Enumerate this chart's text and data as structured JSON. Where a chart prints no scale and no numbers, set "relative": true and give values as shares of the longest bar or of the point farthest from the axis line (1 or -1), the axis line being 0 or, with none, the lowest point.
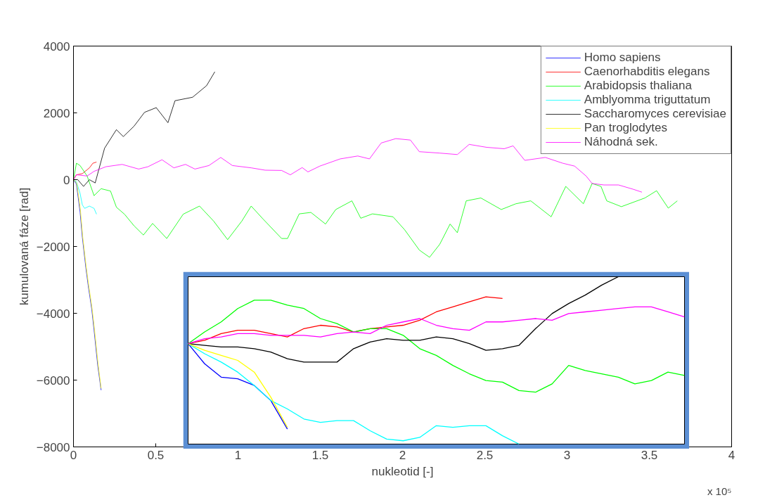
{
  "chart_data": [
    {
      "type": "line",
      "xlabel": "nukleotid [-]",
      "ylabel": "kumulovaná fáze [rad]",
      "xlim": [
        0,
        4
      ],
      "xticks": [
        0,
        0.5,
        1,
        1.5,
        2,
        2.5,
        3,
        3.5,
        4
      ],
      "ylim": [
        -8000,
        4000
      ],
      "yticks": [
        -8000,
        -6000,
        -4000,
        -2000,
        0,
        2000,
        4000
      ],
      "legend": "top right",
      "annotations": [
        "x 10⁵"
      ],
      "series": [
        {
          "name": "Homo sapiens",
          "color": "#0000ff",
          "x": [
            0,
            0.018,
            0.04,
            0.054,
            0.075,
            0.09,
            0.111,
            0.125,
            0.147,
            0.168
          ],
          "values": [
            0,
            -131,
            -963,
            -1726,
            -2627,
            -3182,
            -3875,
            -4499,
            -5539,
            -6300
          ]
        },
        {
          "name": "Caenorhabditis elegans",
          "color": "#ff0000",
          "x": [
            0,
            0.018,
            0.054,
            0.097,
            0.118,
            0.14
          ],
          "values": [
            0,
            146,
            180,
            354,
            493,
            527
          ]
        },
        {
          "name": "Arabidopsis thaliana",
          "color": "#00ff00",
          "x": [
            0,
            0.018,
            0.04,
            0.083,
            0.125,
            0.168,
            0.225,
            0.261,
            0.31,
            0.368,
            0.425,
            0.481,
            0.567,
            0.667,
            0.766,
            0.852,
            0.937,
            1.023,
            1.08,
            1.151,
            1.265,
            1.301,
            1.372,
            1.443,
            1.532,
            1.594,
            1.692,
            1.746,
            1.817,
            1.942,
            2.013,
            2.102,
            2.164,
            2.226,
            2.289,
            2.333,
            2.387,
            2.476,
            2.6,
            2.689,
            2.779,
            2.903,
            2.992,
            3.099,
            3.152,
            3.206,
            3.241,
            3.33,
            3.473,
            3.544,
            3.615,
            3.67
          ],
          "values": [
            0,
            493,
            423,
            110,
            -478,
            -270,
            -340,
            -825,
            -1033,
            -1380,
            -1657,
            -1310,
            -1761,
            -1033,
            -790,
            -1241,
            -1795,
            -1241,
            -790,
            -1172,
            -1761,
            -1761,
            -1024,
            -980,
            -1328,
            -894,
            -634,
            -1154,
            -1024,
            -1111,
            -1501,
            -2107,
            -2324,
            -1934,
            -1328,
            -1588,
            -634,
            -548,
            -894,
            -721,
            -634,
            -1111,
            -201,
            -721,
            -114,
            -201,
            -634,
            -808,
            -548,
            -331,
            -851,
            -634
          ]
        },
        {
          "name": "Amblyomma triguttatum",
          "color": "#00ffff",
          "x": [
            0,
            0.018,
            0.04,
            0.054,
            0.068,
            0.097,
            0.111,
            0.125,
            0.14
          ],
          "values": [
            0,
            -62,
            -409,
            -756,
            -859,
            -790,
            -825,
            -859,
            -1033
          ]
        },
        {
          "name": "Saccharomyces cerevisiae",
          "color": "#000000",
          "x": [
            0,
            0.026,
            0.061,
            0.097,
            0.132,
            0.189,
            0.261,
            0.303,
            0.368,
            0.432,
            0.503,
            0.574,
            0.617,
            0.724,
            0.809,
            0.859
          ],
          "values": [
            0,
            0,
            -202,
            0,
            -98,
            942,
            1498,
            1290,
            1601,
            2017,
            2156,
            1705,
            2364,
            2468,
            2815,
            3230
          ]
        },
        {
          "name": "Pan troglodytes",
          "color": "#ffff00",
          "x": [
            0,
            0.02,
            0.042,
            0.056,
            0.077,
            0.092,
            0.113,
            0.127,
            0.149,
            0.168
          ],
          "values": [
            0,
            -100,
            -900,
            -1700,
            -2600,
            -3150,
            -3850,
            -4450,
            -5500,
            -6250
          ]
        },
        {
          "name": "Náhodná sek.",
          "color": "#ff00ff",
          "x": [
            0,
            0.018,
            0.083,
            0.125,
            0.197,
            0.296,
            0.396,
            0.453,
            0.538,
            0.61,
            0.681,
            0.738,
            0.823,
            0.895,
            0.966,
            1.08,
            1.165,
            1.265,
            1.318,
            1.39,
            1.425,
            1.497,
            1.621,
            1.728,
            1.799,
            1.87,
            1.959,
            2.048,
            2.102,
            2.226,
            2.333,
            2.405,
            2.511,
            2.618,
            2.672,
            2.743,
            2.868,
            2.974,
            3.046,
            3.117,
            3.152,
            3.224,
            3.313,
            3.402,
            3.455
          ],
          "values": [
            0,
            146,
            110,
            250,
            388,
            457,
            318,
            388,
            596,
            354,
            457,
            318,
            423,
            665,
            423,
            354,
            284,
            276,
            146,
            362,
            233,
            406,
            622,
            709,
            622,
            1098,
            1229,
            1186,
            838,
            796,
            752,
            1056,
            969,
            926,
            1012,
            578,
            666,
            492,
            406,
            102,
            -114,
            -158,
            -158,
            -287,
            -374
          ]
        }
      ]
    },
    {
      "type": "line",
      "relative": true,
      "categories": [
        null,
        null,
        null,
        null,
        null,
        null,
        null,
        null,
        null,
        null,
        null,
        null,
        null,
        null,
        null,
        null,
        null,
        null,
        null,
        null,
        null,
        null,
        null,
        null,
        null,
        null,
        null,
        null,
        null,
        null,
        null
      ],
      "series": [
        {
          "color": "#0000ff",
          "values": [
            0.6,
            0.48,
            0.4,
            0.39,
            0.35,
            0.26,
            0.09,
            null,
            null,
            null,
            null,
            null,
            null,
            null,
            null,
            null,
            null,
            null,
            null,
            null,
            null,
            null,
            null,
            null,
            null,
            null,
            null,
            null,
            null,
            null,
            null
          ]
        },
        {
          "color": "#ff0000",
          "values": [
            0.6,
            0.62,
            0.66,
            0.68,
            0.68,
            0.66,
            0.64,
            0.69,
            0.71,
            0.7,
            0.67,
            0.69,
            0.7,
            0.71,
            0.74,
            0.79,
            0.82,
            0.85,
            0.88,
            0.87,
            null,
            null,
            null,
            null,
            null,
            null,
            null,
            null,
            null,
            null,
            null
          ]
        },
        {
          "color": "#00ff00",
          "values": [
            0.6,
            0.67,
            0.73,
            0.81,
            0.86,
            0.86,
            0.83,
            0.81,
            0.75,
            0.72,
            0.67,
            0.69,
            0.69,
            0.65,
            0.57,
            0.53,
            0.47,
            0.42,
            0.38,
            0.37,
            0.32,
            0.31,
            0.36,
            0.47,
            0.44,
            0.42,
            0.4,
            0.36,
            0.38,
            0.43,
            0.41
          ]
        },
        {
          "color": "#00ffff",
          "values": [
            0.6,
            0.54,
            0.49,
            0.43,
            0.35,
            0.26,
            0.21,
            0.15,
            0.13,
            0.14,
            0.14,
            0.08,
            0.03,
            0.02,
            0.04,
            0.11,
            0.1,
            0.11,
            0.11,
            0.05,
            0,
            null,
            null,
            null,
            null,
            null,
            null,
            null,
            null,
            null,
            null
          ]
        },
        {
          "color": "#000000",
          "values": [
            0.6,
            0.59,
            0.58,
            0.58,
            0.57,
            0.55,
            0.51,
            0.49,
            0.49,
            0.49,
            0.57,
            0.61,
            0.63,
            0.62,
            0.62,
            0.64,
            0.63,
            0.6,
            0.56,
            0.57,
            0.59,
            0.69,
            0.78,
            0.84,
            0.89,
            0.95,
            1,
            null,
            null,
            null,
            null
          ]
        },
        {
          "color": "#ffff00",
          "values": [
            0.6,
            0.56,
            0.53,
            0.5,
            0.43,
            0.28,
            0.1,
            null,
            null,
            null,
            null,
            null,
            null,
            null,
            null,
            null,
            null,
            null,
            null,
            null,
            null,
            null,
            null,
            null,
            null,
            null,
            null,
            null,
            null,
            null,
            null
          ]
        },
        {
          "color": "#ff00ff",
          "values": [
            0.6,
            0.63,
            0.64,
            0.66,
            0.66,
            0.65,
            0.65,
            0.65,
            0.64,
            0.66,
            0.67,
            0.66,
            0.71,
            0.73,
            0.75,
            0.71,
            0.69,
            0.68,
            0.73,
            0.73,
            0.74,
            0.75,
            0.74,
            0.78,
            0.79,
            0.8,
            0.81,
            0.82,
            0.82,
            0.79,
            0.76
          ]
        }
      ]
    }
  ]
}
